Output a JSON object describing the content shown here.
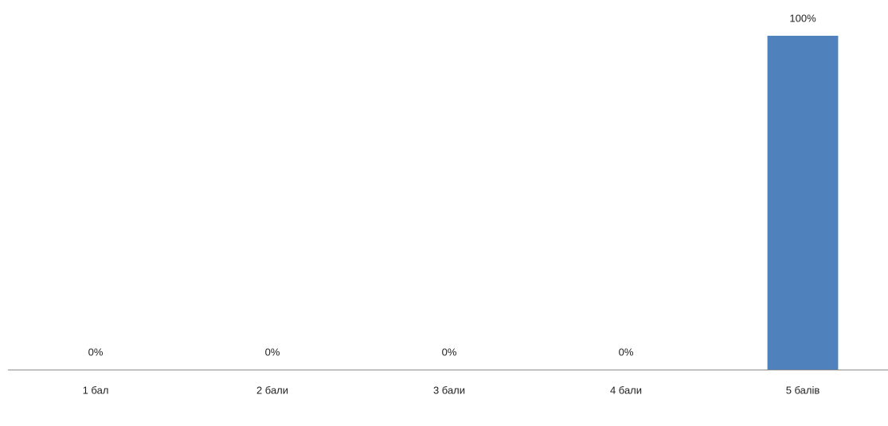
{
  "chart_data": {
    "type": "bar",
    "categories": [
      "1 бал",
      "2 бали",
      "3 бали",
      "4 бали",
      "5 балів"
    ],
    "values": [
      0,
      0,
      0,
      0,
      100
    ],
    "value_labels": [
      "0%",
      "0%",
      "0%",
      "0%",
      "100%"
    ],
    "color": "#4f81bd"
  }
}
